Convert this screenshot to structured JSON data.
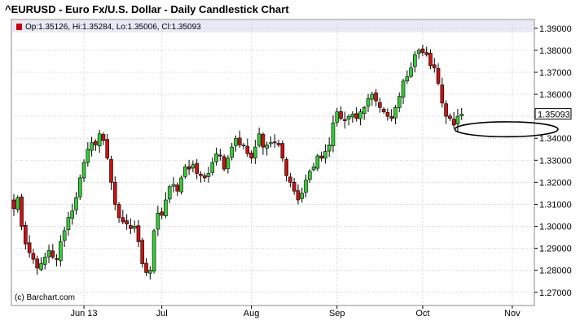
{
  "chart_data": {
    "type": "candlestick",
    "title": "^EURUSD - Euro Fx/U.S. Dollar - Daily Candlestick Chart",
    "legend": {
      "label": "Op:1.35126, Hi:1.35284, Lo:1.35006, Cl:1.35093",
      "swatch_color": "#cc0000"
    },
    "credit": "(c) Barchart.com",
    "last_price_label": "1.35093",
    "last_price": 1.35093,
    "ylim": [
      1.264,
      1.394
    ],
    "y_ticks": [
      "1.27000",
      "1.28000",
      "1.29000",
      "1.30000",
      "1.31000",
      "1.32000",
      "1.33000",
      "1.34000",
      "1.35000",
      "1.36000",
      "1.37000",
      "1.38000",
      "1.39000"
    ],
    "x_ticks": [
      {
        "label": "Jun 13",
        "index": 18
      },
      {
        "label": "Jul",
        "index": 38
      },
      {
        "label": "Aug",
        "index": 61
      },
      {
        "label": "Sep",
        "index": 83
      },
      {
        "label": "Oct",
        "index": 105
      },
      {
        "label": "Nov",
        "index": 128
      }
    ],
    "grid": true,
    "up_color": "#33cc33",
    "down_color": "#cc1111",
    "annotation": {
      "type": "ellipse",
      "center_index": 126.5,
      "center_price": 1.3441,
      "radius_index": 5.3,
      "radius_price": 0.0034
    },
    "close": [
      1.308,
      1.313,
      1.3,
      1.292,
      1.288,
      1.285,
      1.281,
      1.283,
      1.286,
      1.289,
      1.286,
      1.285,
      1.293,
      1.298,
      1.304,
      1.307,
      1.313,
      1.322,
      1.329,
      1.335,
      1.338,
      1.337,
      1.342,
      1.339,
      1.331,
      1.32,
      1.31,
      1.304,
      1.302,
      1.301,
      1.299,
      1.3,
      1.293,
      1.283,
      1.279,
      1.28,
      1.298,
      1.306,
      1.305,
      1.312,
      1.318,
      1.319,
      1.316,
      1.322,
      1.327,
      1.326,
      1.328,
      1.324,
      1.323,
      1.322,
      1.324,
      1.329,
      1.333,
      1.332,
      1.326,
      1.331,
      1.336,
      1.34,
      1.337,
      1.337,
      1.333,
      1.331,
      1.336,
      1.342,
      1.336,
      1.337,
      1.338,
      1.338,
      1.337,
      1.331,
      1.323,
      1.32,
      1.316,
      1.312,
      1.315,
      1.321,
      1.325,
      1.327,
      1.332,
      1.331,
      1.334,
      1.337,
      1.347,
      1.352,
      1.349,
      1.348,
      1.35,
      1.351,
      1.349,
      1.352,
      1.354,
      1.358,
      1.36,
      1.357,
      1.354,
      1.352,
      1.35,
      1.349,
      1.354,
      1.359,
      1.366,
      1.368,
      1.372,
      1.378,
      1.38,
      1.379,
      1.378,
      1.373,
      1.372,
      1.365,
      1.356,
      1.35,
      1.349,
      1.346,
      1.35,
      1.351
    ]
  }
}
